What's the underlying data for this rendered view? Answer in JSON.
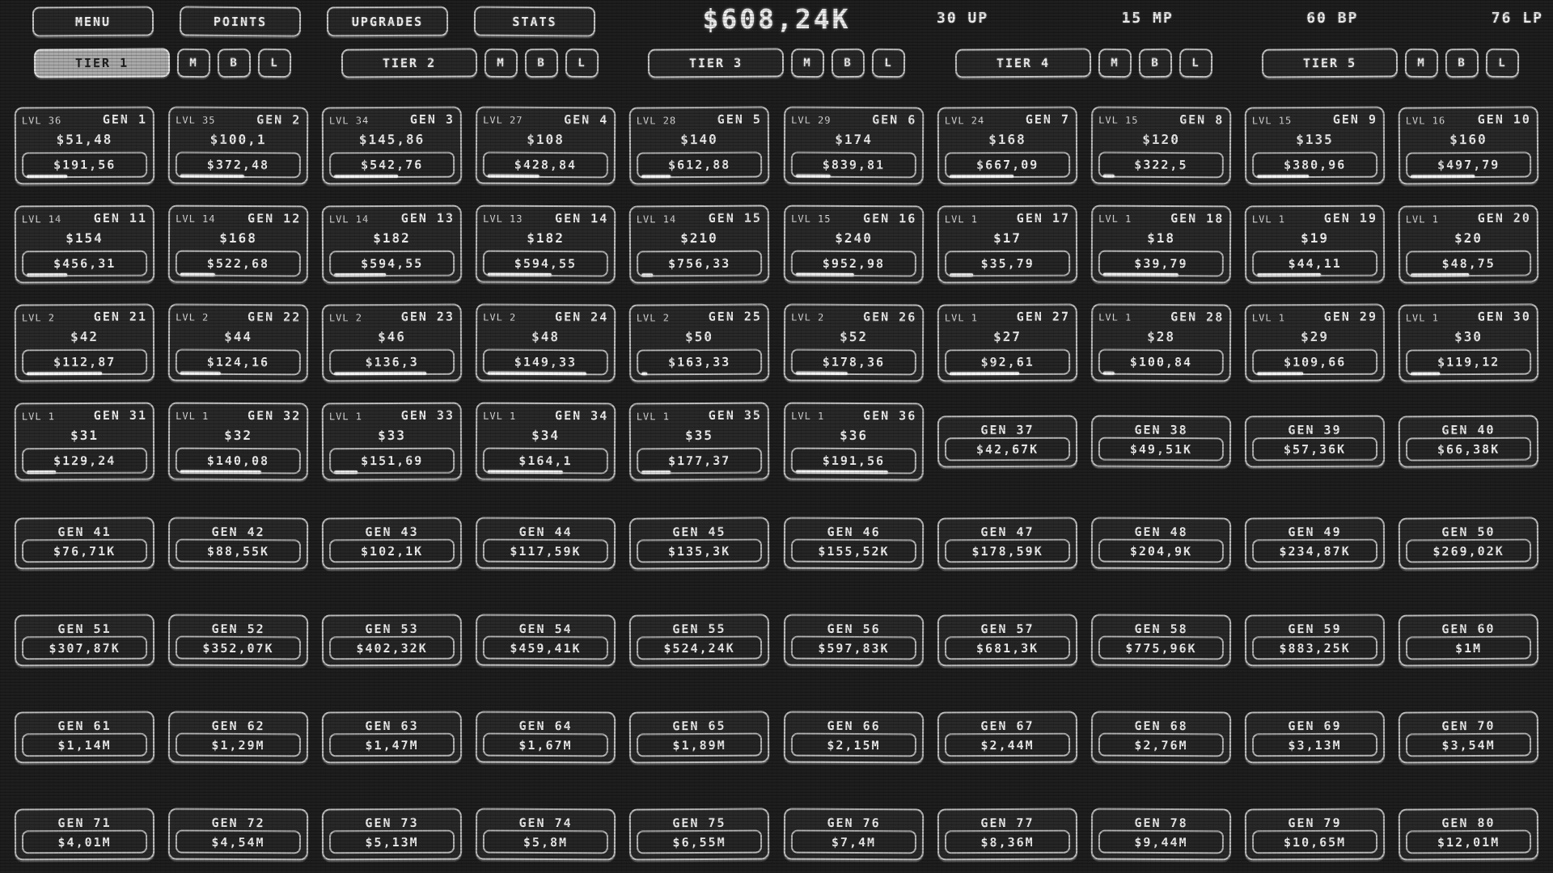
{
  "header": {
    "menu_buttons": [
      "MENU",
      "POINTS",
      "UPGRADES",
      "STATS"
    ],
    "money": "$608,24K",
    "counters": [
      {
        "value": "30",
        "label": "UP"
      },
      {
        "value": "15",
        "label": "MP"
      },
      {
        "value": "60",
        "label": "BP"
      },
      {
        "value": "76",
        "label": "LP"
      }
    ]
  },
  "tiers": [
    {
      "label": "TIER 1",
      "active": true,
      "buttons": [
        "M",
        "B",
        "L"
      ]
    },
    {
      "label": "TIER 2",
      "active": false,
      "buttons": [
        "M",
        "B",
        "L"
      ]
    },
    {
      "label": "TIER 3",
      "active": false,
      "buttons": [
        "M",
        "B",
        "L"
      ]
    },
    {
      "label": "TIER 4",
      "active": false,
      "buttons": [
        "M",
        "B",
        "L"
      ]
    },
    {
      "label": "TIER 5",
      "active": false,
      "buttons": [
        "M",
        "B",
        "L"
      ]
    }
  ],
  "generators": [
    {
      "id": "GEN 1",
      "lvl": "LVL 36",
      "income": "$51,48",
      "price": "$191,56",
      "progress": 35
    },
    {
      "id": "GEN 2",
      "lvl": "LVL 35",
      "income": "$100,1",
      "price": "$372,48",
      "progress": 55
    },
    {
      "id": "GEN 3",
      "lvl": "LVL 34",
      "income": "$145,86",
      "price": "$542,76",
      "progress": 55
    },
    {
      "id": "GEN 4",
      "lvl": "LVL 27",
      "income": "$108",
      "price": "$428,84",
      "progress": 45
    },
    {
      "id": "GEN 5",
      "lvl": "LVL 28",
      "income": "$140",
      "price": "$612,88",
      "progress": 25
    },
    {
      "id": "GEN 6",
      "lvl": "LVL 29",
      "income": "$174",
      "price": "$839,81",
      "progress": 30
    },
    {
      "id": "GEN 7",
      "lvl": "LVL 24",
      "income": "$168",
      "price": "$667,09",
      "progress": 55
    },
    {
      "id": "GEN 8",
      "lvl": "LVL 15",
      "income": "$120",
      "price": "$322,5",
      "progress": 10
    },
    {
      "id": "GEN 9",
      "lvl": "LVL 15",
      "income": "$135",
      "price": "$380,96",
      "progress": 45
    },
    {
      "id": "GEN 10",
      "lvl": "LVL 16",
      "income": "$160",
      "price": "$497,79",
      "progress": 55
    },
    {
      "id": "GEN 11",
      "lvl": "LVL 14",
      "income": "$154",
      "price": "$456,31",
      "progress": 35
    },
    {
      "id": "GEN 12",
      "lvl": "LVL 14",
      "income": "$168",
      "price": "$522,68",
      "progress": 30
    },
    {
      "id": "GEN 13",
      "lvl": "LVL 14",
      "income": "$182",
      "price": "$594,55",
      "progress": 45
    },
    {
      "id": "GEN 14",
      "lvl": "LVL 13",
      "income": "$182",
      "price": "$594,55",
      "progress": 55
    },
    {
      "id": "GEN 15",
      "lvl": "LVL 14",
      "income": "$210",
      "price": "$756,33",
      "progress": 10
    },
    {
      "id": "GEN 16",
      "lvl": "LVL 15",
      "income": "$240",
      "price": "$952,98",
      "progress": 50
    },
    {
      "id": "GEN 17",
      "lvl": "LVL 1",
      "income": "$17",
      "price": "$35,79",
      "progress": 20
    },
    {
      "id": "GEN 18",
      "lvl": "LVL 1",
      "income": "$18",
      "price": "$39,79",
      "progress": 65
    },
    {
      "id": "GEN 19",
      "lvl": "LVL 1",
      "income": "$19",
      "price": "$44,11",
      "progress": 55
    },
    {
      "id": "GEN 20",
      "lvl": "LVL 1",
      "income": "$20",
      "price": "$48,75",
      "progress": 50
    },
    {
      "id": "GEN 21",
      "lvl": "LVL 2",
      "income": "$42",
      "price": "$112,87",
      "progress": 65
    },
    {
      "id": "GEN 22",
      "lvl": "LVL 2",
      "income": "$44",
      "price": "$124,16",
      "progress": 35
    },
    {
      "id": "GEN 23",
      "lvl": "LVL 2",
      "income": "$46",
      "price": "$136,3",
      "progress": 80
    },
    {
      "id": "GEN 24",
      "lvl": "LVL 2",
      "income": "$48",
      "price": "$149,33",
      "progress": 85
    },
    {
      "id": "GEN 25",
      "lvl": "LVL 2",
      "income": "$50",
      "price": "$163,33",
      "progress": 5
    },
    {
      "id": "GEN 26",
      "lvl": "LVL 2",
      "income": "$52",
      "price": "$178,36",
      "progress": 45
    },
    {
      "id": "GEN 27",
      "lvl": "LVL 1",
      "income": "$27",
      "price": "$92,61",
      "progress": 60
    },
    {
      "id": "GEN 28",
      "lvl": "LVL 1",
      "income": "$28",
      "price": "$100,84",
      "progress": 10
    },
    {
      "id": "GEN 29",
      "lvl": "LVL 1",
      "income": "$29",
      "price": "$109,66",
      "progress": 40
    },
    {
      "id": "GEN 30",
      "lvl": "LVL 1",
      "income": "$30",
      "price": "$119,12",
      "progress": 25
    },
    {
      "id": "GEN 31",
      "lvl": "LVL 1",
      "income": "$31",
      "price": "$129,24",
      "progress": 25
    },
    {
      "id": "GEN 32",
      "lvl": "LVL 1",
      "income": "$32",
      "price": "$140,08",
      "progress": 70
    },
    {
      "id": "GEN 33",
      "lvl": "LVL 1",
      "income": "$33",
      "price": "$151,69",
      "progress": 20
    },
    {
      "id": "GEN 34",
      "lvl": "LVL 1",
      "income": "$34",
      "price": "$164,1",
      "progress": 65
    },
    {
      "id": "GEN 35",
      "lvl": "LVL 1",
      "income": "$35",
      "price": "$177,37",
      "progress": 25
    },
    {
      "id": "GEN 36",
      "lvl": "LVL 1",
      "income": "$36",
      "price": "$191,56",
      "progress": 80
    },
    {
      "id": "GEN 37",
      "price": "$42,67K"
    },
    {
      "id": "GEN 38",
      "price": "$49,51K"
    },
    {
      "id": "GEN 39",
      "price": "$57,36K"
    },
    {
      "id": "GEN 40",
      "price": "$66,38K"
    },
    {
      "id": "GEN 41",
      "price": "$76,71K"
    },
    {
      "id": "GEN 42",
      "price": "$88,55K"
    },
    {
      "id": "GEN 43",
      "price": "$102,1K"
    },
    {
      "id": "GEN 44",
      "price": "$117,59K"
    },
    {
      "id": "GEN 45",
      "price": "$135,3K"
    },
    {
      "id": "GEN 46",
      "price": "$155,52K"
    },
    {
      "id": "GEN 47",
      "price": "$178,59K"
    },
    {
      "id": "GEN 48",
      "price": "$204,9K"
    },
    {
      "id": "GEN 49",
      "price": "$234,87K"
    },
    {
      "id": "GEN 50",
      "price": "$269,02K"
    },
    {
      "id": "GEN 51",
      "price": "$307,87K"
    },
    {
      "id": "GEN 52",
      "price": "$352,07K"
    },
    {
      "id": "GEN 53",
      "price": "$402,32K"
    },
    {
      "id": "GEN 54",
      "price": "$459,41K"
    },
    {
      "id": "GEN 55",
      "price": "$524,24K"
    },
    {
      "id": "GEN 56",
      "price": "$597,83K"
    },
    {
      "id": "GEN 57",
      "price": "$681,3K"
    },
    {
      "id": "GEN 58",
      "price": "$775,96K"
    },
    {
      "id": "GEN 59",
      "price": "$883,25K"
    },
    {
      "id": "GEN 60",
      "price": "$1M"
    },
    {
      "id": "GEN 61",
      "price": "$1,14M"
    },
    {
      "id": "GEN 62",
      "price": "$1,29M"
    },
    {
      "id": "GEN 63",
      "price": "$1,47M"
    },
    {
      "id": "GEN 64",
      "price": "$1,67M"
    },
    {
      "id": "GEN 65",
      "price": "$1,89M"
    },
    {
      "id": "GEN 66",
      "price": "$2,15M"
    },
    {
      "id": "GEN 67",
      "price": "$2,44M"
    },
    {
      "id": "GEN 68",
      "price": "$2,76M"
    },
    {
      "id": "GEN 69",
      "price": "$3,13M"
    },
    {
      "id": "GEN 70",
      "price": "$3,54M"
    },
    {
      "id": "GEN 71",
      "price": "$4,01M"
    },
    {
      "id": "GEN 72",
      "price": "$4,54M"
    },
    {
      "id": "GEN 73",
      "price": "$5,13M"
    },
    {
      "id": "GEN 74",
      "price": "$5,8M"
    },
    {
      "id": "GEN 75",
      "price": "$6,55M"
    },
    {
      "id": "GEN 76",
      "price": "$7,4M"
    },
    {
      "id": "GEN 77",
      "price": "$8,36M"
    },
    {
      "id": "GEN 78",
      "price": "$9,44M"
    },
    {
      "id": "GEN 79",
      "price": "$10,65M"
    },
    {
      "id": "GEN 80",
      "price": "$12,01M"
    }
  ]
}
